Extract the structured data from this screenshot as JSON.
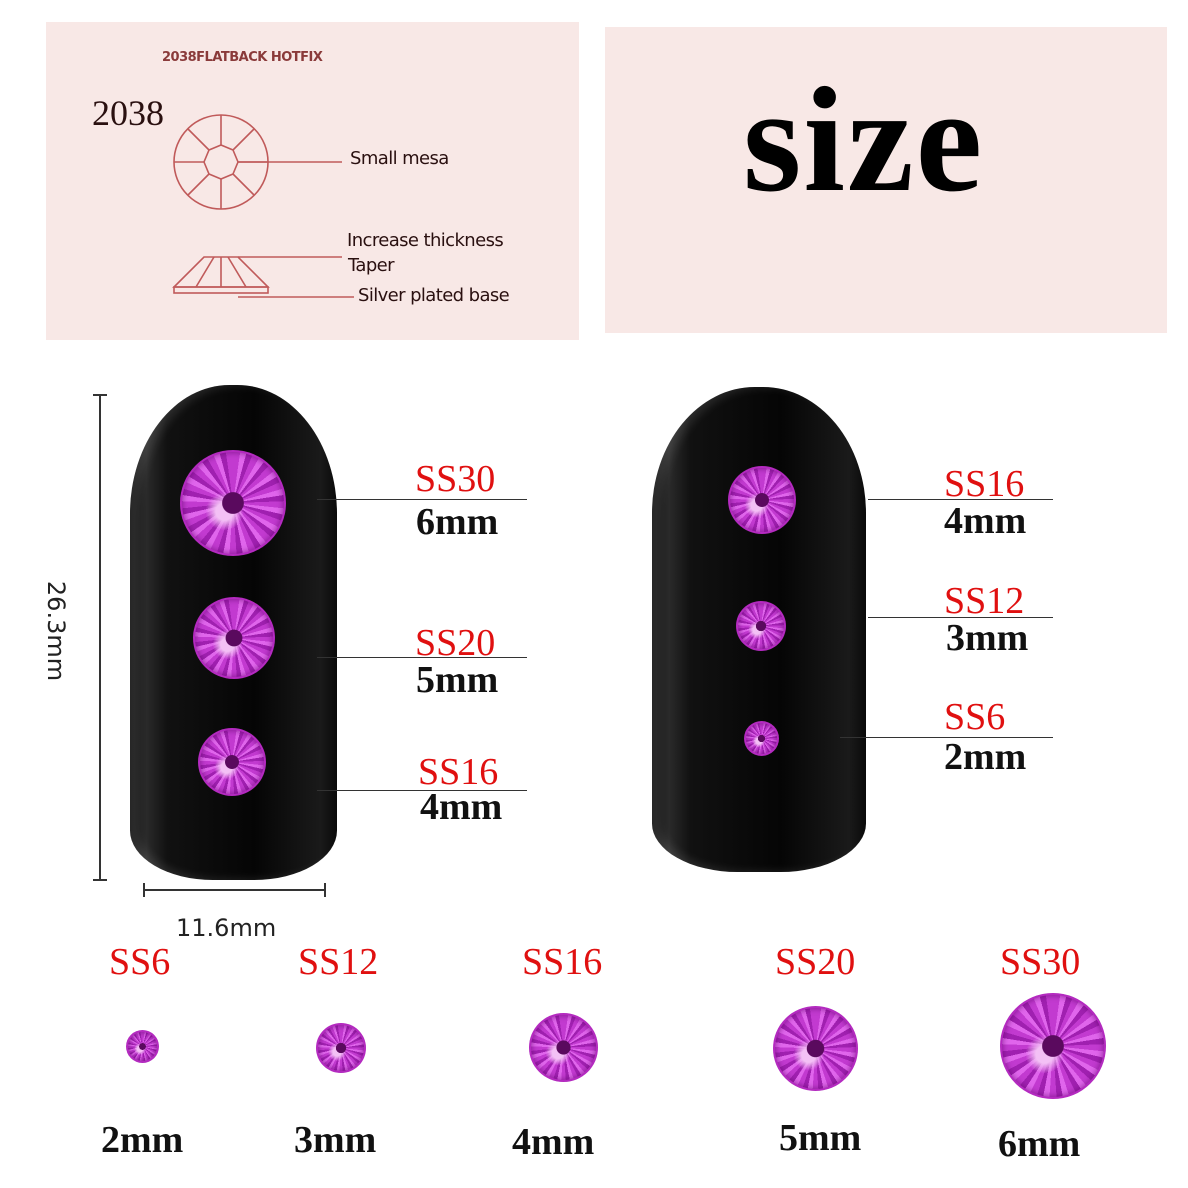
{
  "diagram": {
    "header": "2038FLATBACK HOTFIX",
    "model": "2038",
    "labels": [
      "Small mesa",
      "Increase thickness",
      "Taper",
      "Silver plated base"
    ]
  },
  "title": "size",
  "dimensions": {
    "height": "26.3mm",
    "width": "11.6mm"
  },
  "left_nail": [
    {
      "ss": "SS30",
      "mm": "6mm"
    },
    {
      "ss": "SS20",
      "mm": "5mm"
    },
    {
      "ss": "SS16",
      "mm": "4mm"
    }
  ],
  "right_nail": [
    {
      "ss": "SS16",
      "mm": "4mm"
    },
    {
      "ss": "SS12",
      "mm": "3mm"
    },
    {
      "ss": "SS6",
      "mm": "2mm"
    }
  ],
  "row": [
    {
      "ss": "SS6",
      "mm": "2mm"
    },
    {
      "ss": "SS12",
      "mm": "3mm"
    },
    {
      "ss": "SS16",
      "mm": "4mm"
    },
    {
      "ss": "SS20",
      "mm": "5mm"
    },
    {
      "ss": "SS30",
      "mm": "6mm"
    }
  ],
  "colors": {
    "label_red": "#e01010",
    "gem": "#c23ad0",
    "panel": "#f8e8e6"
  }
}
